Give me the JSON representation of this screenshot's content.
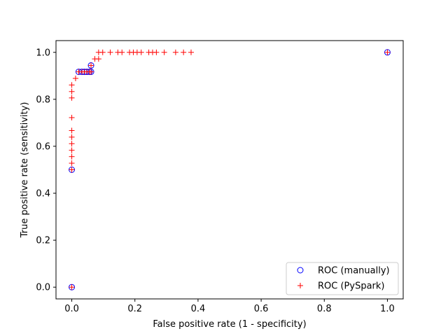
{
  "chart_data": {
    "type": "scatter",
    "title": "",
    "xlabel": "False positive rate (1 - specificity)",
    "ylabel": "True positive rate (sensitivity)",
    "xlim": [
      -0.05,
      1.05
    ],
    "ylim": [
      -0.05,
      1.05
    ],
    "x_ticks": [
      0.0,
      0.2,
      0.4,
      0.6,
      0.8,
      1.0
    ],
    "y_ticks": [
      0.0,
      0.2,
      0.4,
      0.6,
      0.8,
      1.0
    ],
    "x_tick_labels": [
      "0.0",
      "0.2",
      "0.4",
      "0.6",
      "0.8",
      "1.0"
    ],
    "y_tick_labels": [
      "0.0",
      "0.2",
      "0.4",
      "0.6",
      "0.8",
      "1.0"
    ],
    "grid": false,
    "legend_position": "lower right",
    "series": [
      {
        "name": "ROC (manually)",
        "marker": "circle-open",
        "color": "#0000ff",
        "points": [
          [
            0.0,
            0.0
          ],
          [
            0.0,
            0.5
          ],
          [
            0.022,
            0.917
          ],
          [
            0.032,
            0.917
          ],
          [
            0.04,
            0.917
          ],
          [
            0.048,
            0.917
          ],
          [
            0.056,
            0.917
          ],
          [
            0.061,
            0.917
          ],
          [
            0.061,
            0.944
          ],
          [
            1.0,
            1.0
          ]
        ]
      },
      {
        "name": "ROC (PySpark)",
        "marker": "plus",
        "color": "#ff0000",
        "points": [
          [
            0.0,
            0.0
          ],
          [
            0.0,
            0.5
          ],
          [
            0.0,
            0.528
          ],
          [
            0.0,
            0.556
          ],
          [
            0.0,
            0.583
          ],
          [
            0.0,
            0.611
          ],
          [
            0.0,
            0.639
          ],
          [
            0.0,
            0.667
          ],
          [
            0.0,
            0.722
          ],
          [
            0.0,
            0.806
          ],
          [
            0.0,
            0.833
          ],
          [
            0.0,
            0.861
          ],
          [
            0.012,
            0.889
          ],
          [
            0.022,
            0.917
          ],
          [
            0.032,
            0.917
          ],
          [
            0.04,
            0.917
          ],
          [
            0.048,
            0.917
          ],
          [
            0.056,
            0.917
          ],
          [
            0.061,
            0.917
          ],
          [
            0.061,
            0.944
          ],
          [
            0.073,
            0.972
          ],
          [
            0.085,
            0.972
          ],
          [
            0.085,
            1.0
          ],
          [
            0.098,
            1.0
          ],
          [
            0.122,
            1.0
          ],
          [
            0.146,
            1.0
          ],
          [
            0.159,
            1.0
          ],
          [
            0.183,
            1.0
          ],
          [
            0.195,
            1.0
          ],
          [
            0.207,
            1.0
          ],
          [
            0.22,
            1.0
          ],
          [
            0.244,
            1.0
          ],
          [
            0.256,
            1.0
          ],
          [
            0.268,
            1.0
          ],
          [
            0.293,
            1.0
          ],
          [
            0.329,
            1.0
          ],
          [
            0.354,
            1.0
          ],
          [
            0.378,
            1.0
          ],
          [
            1.0,
            1.0
          ]
        ]
      }
    ]
  }
}
